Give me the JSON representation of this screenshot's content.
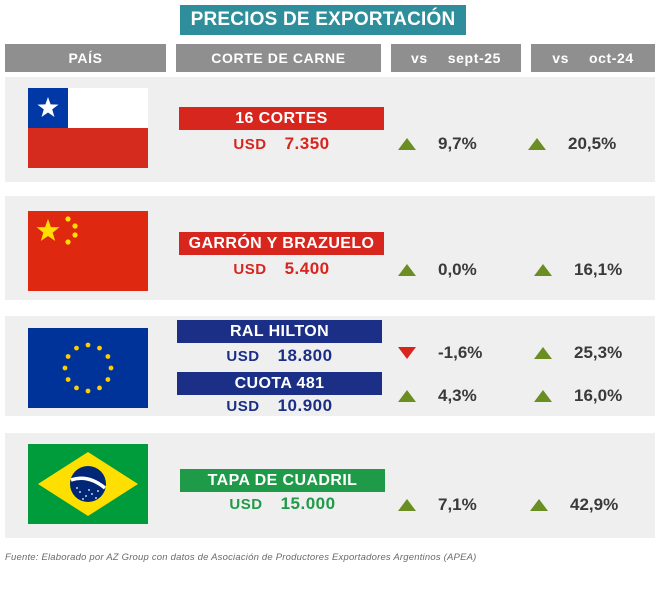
{
  "title": "PRECIOS DE EXPORTACIÓN",
  "headers": {
    "country": "PAÍS",
    "cut": "CORTE DE CARNE",
    "vs_label": "vs",
    "period1": "sept-25",
    "period2": "oct-24"
  },
  "rows": [
    {
      "country_flag": "chile-flag",
      "items": [
        {
          "cut": "16 CORTES",
          "currency": "USD",
          "price": "7.350",
          "chg1": "9,7%",
          "dir1": "up",
          "chg2": "20,5%",
          "dir2": "up"
        }
      ]
    },
    {
      "country_flag": "china-flag",
      "items": [
        {
          "cut": "GARRÓN Y BRAZUELO",
          "currency": "USD",
          "price": "5.400",
          "chg1": "0,0%",
          "dir1": "up",
          "chg2": "16,1%",
          "dir2": "up"
        }
      ]
    },
    {
      "country_flag": "eu-flag",
      "items": [
        {
          "cut": "RAL HILTON",
          "currency": "USD",
          "price": "18.800",
          "chg1": "-1,6%",
          "dir1": "down",
          "chg2": "25,3%",
          "dir2": "up"
        },
        {
          "cut": "CUOTA 481",
          "currency": "USD",
          "price": "10.900",
          "chg1": "4,3%",
          "dir1": "up",
          "chg2": "16,0%",
          "dir2": "up"
        }
      ]
    },
    {
      "country_flag": "brazil-flag",
      "items": [
        {
          "cut": "TAPA DE CUADRIL",
          "currency": "USD",
          "price": "15.000",
          "chg1": "7,1%",
          "dir1": "up",
          "chg2": "42,9%",
          "dir2": "up"
        }
      ]
    }
  ],
  "colors": {
    "title_bg": "#2e8e9b",
    "header_bg": "#8f8f8f",
    "row_bg": "#efefef",
    "red": "#d7261e",
    "blue": "#1b2f86",
    "green": "#1f9a48",
    "up_arrow": "#6b8e23",
    "down_arrow": "#d7261e"
  },
  "footer": "Fuente: Elaborado por AZ Group con datos de Asociación de Productores Exportadores Argentinos (APEA)"
}
